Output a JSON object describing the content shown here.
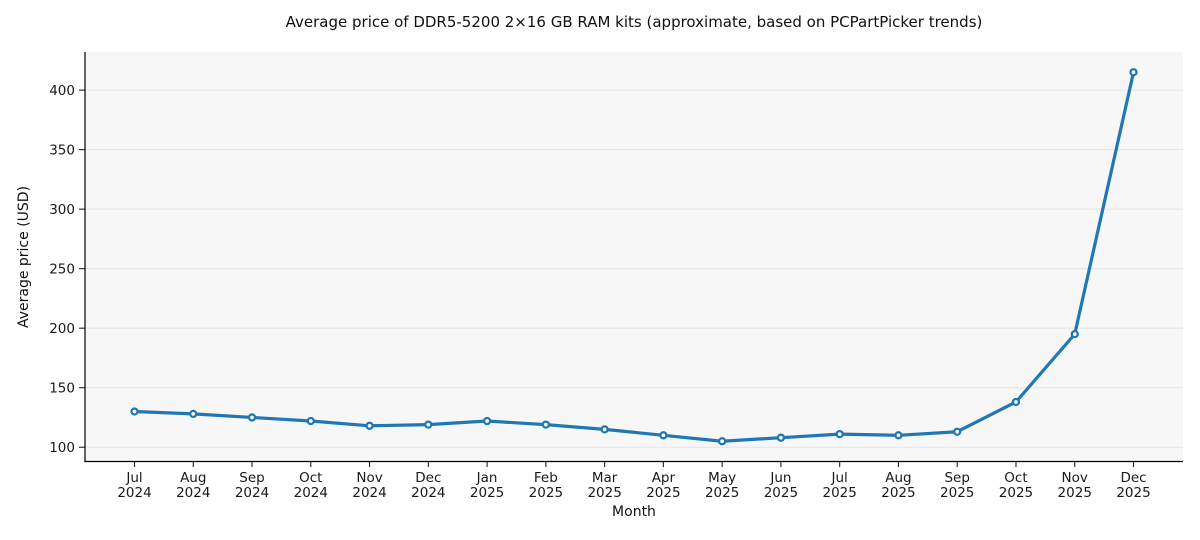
{
  "chart_data": {
    "type": "line",
    "title": "Average price of DDR5-5200 2×16 GB RAM kits (approximate, based on PCPartPicker trends)",
    "xlabel": "Month",
    "ylabel": "Average price (USD)",
    "categories": [
      "Jul 2024",
      "Aug 2024",
      "Sep 2024",
      "Oct 2024",
      "Nov 2024",
      "Dec 2024",
      "Jan 2025",
      "Feb 2025",
      "Mar 2025",
      "Apr 2025",
      "May 2025",
      "Jun 2025",
      "Jul 2025",
      "Aug 2025",
      "Sep 2025",
      "Oct 2025",
      "Nov 2025",
      "Dec 2025"
    ],
    "series": [
      {
        "name": "Average price (USD)",
        "values": [
          130,
          128,
          125,
          122,
          118,
          119,
          122,
          119,
          115,
          110,
          105,
          108,
          111,
          110,
          113,
          138,
          195,
          415
        ]
      }
    ],
    "yticks": [
      100,
      150,
      200,
      250,
      300,
      350,
      400
    ],
    "ylim": [
      88,
      432
    ],
    "grid": "horizontal-only",
    "legend_position": "none",
    "line_color": "#1f77b4",
    "marker_shape": "circle",
    "marker_fill": "#ffffff",
    "marker_edge": "#1f77b4",
    "plot_bg": "#f7f7f7",
    "grid_color": "#e4e4e4",
    "spine_color": "#000000",
    "tick_color": "#222222",
    "text_color": "#1a1a1a"
  }
}
